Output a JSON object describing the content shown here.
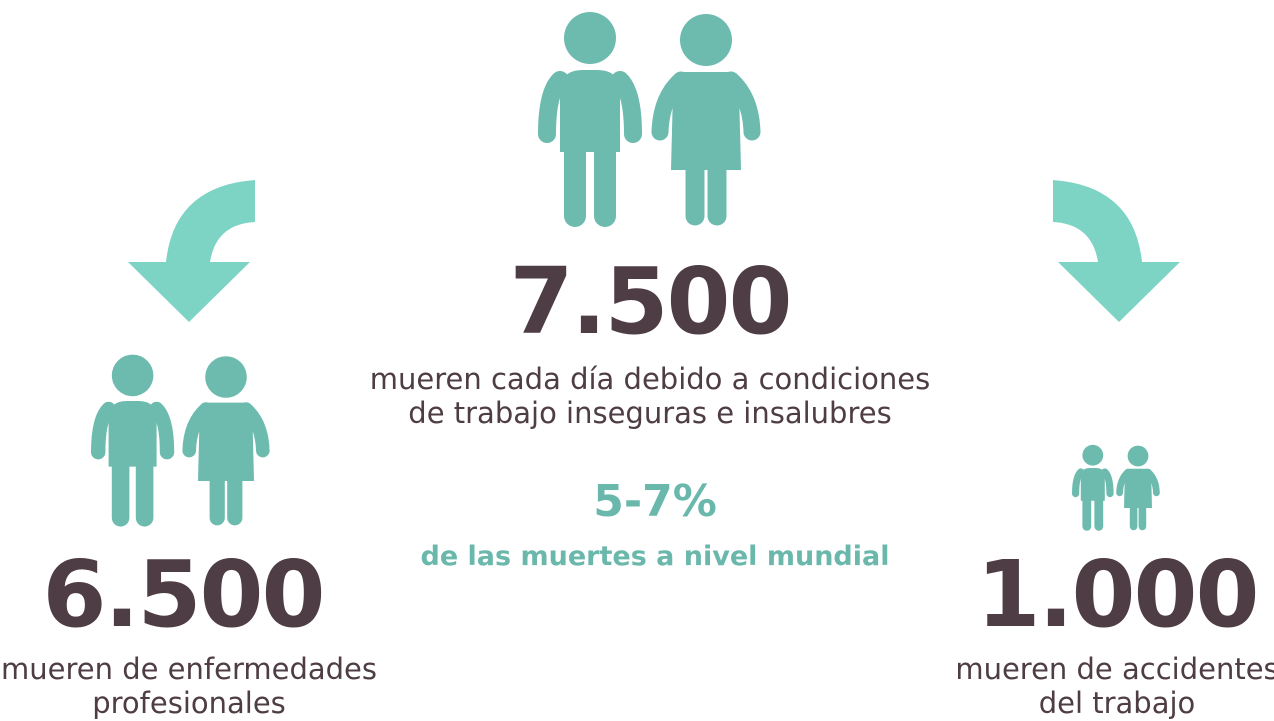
{
  "center": {
    "number": "7.500",
    "description": [
      "mueren cada día debido a condiciones",
      "de trabajo inseguras e insalubres"
    ],
    "share": "5-7%",
    "share_description": "de las muertes a nivel mundial"
  },
  "left": {
    "number": "6.500",
    "description": [
      "mueren de enfermedades",
      "profesionales"
    ]
  },
  "right": {
    "number": "1.000",
    "description": [
      "mueren de accidentes",
      "del trabajo"
    ]
  }
}
